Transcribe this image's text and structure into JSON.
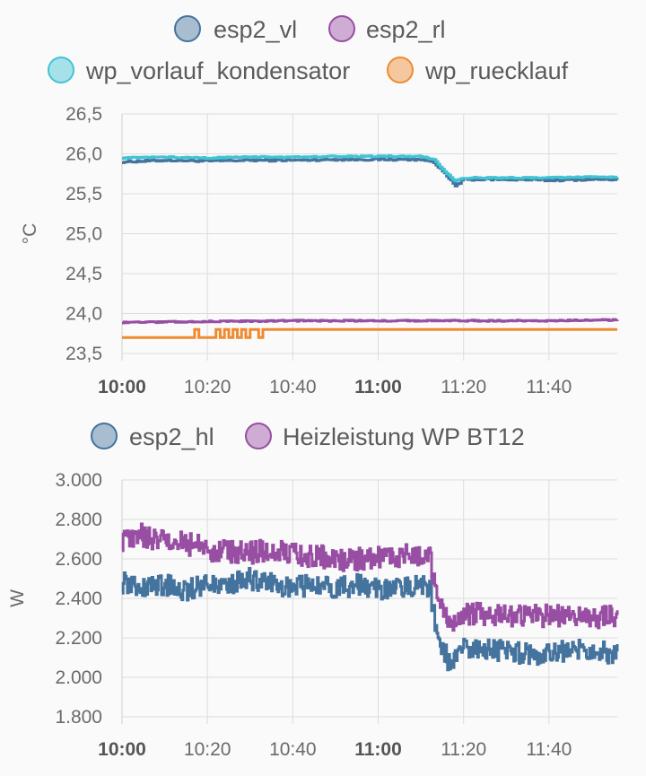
{
  "colors": {
    "esp2_vl": "#44739e",
    "esp2_rl": "#984ea3",
    "wp_vorlauf_kondensator": "#40c4d4",
    "wp_ruecklauf": "#ef8a2f",
    "esp2_hl": "#44739e",
    "heizleistung": "#984ea3"
  },
  "chart_data": [
    {
      "type": "line",
      "ylabel": "°C",
      "ylim": [
        23.5,
        26.5
      ],
      "y_ticks": [
        "26,5",
        "26,0",
        "25,5",
        "25,0",
        "24,5",
        "24,0",
        "23,5"
      ],
      "x_range": [
        "10:00",
        "11:56"
      ],
      "x_ticks": [
        {
          "label": "10:00",
          "bold": true
        },
        {
          "label": "10:20",
          "bold": false
        },
        {
          "label": "10:40",
          "bold": false
        },
        {
          "label": "11:00",
          "bold": true
        },
        {
          "label": "11:20",
          "bold": false
        },
        {
          "label": "11:40",
          "bold": false
        }
      ],
      "legend": {
        "placement": "top",
        "rows": [
          [
            "esp2_vl",
            "esp2_rl"
          ],
          [
            "wp_vorlauf_kondensator",
            "wp_ruecklauf"
          ]
        ]
      },
      "series": [
        {
          "name": "esp2_vl",
          "points": [
            [
              "10:00",
              25.9
            ],
            [
              "10:10",
              25.92
            ],
            [
              "10:20",
              25.91
            ],
            [
              "10:30",
              25.92
            ],
            [
              "10:40",
              25.92
            ],
            [
              "10:50",
              25.93
            ],
            [
              "11:00",
              25.93
            ],
            [
              "11:10",
              25.93
            ],
            [
              "11:13",
              25.9
            ],
            [
              "11:16",
              25.72
            ],
            [
              "11:18",
              25.6
            ],
            [
              "11:20",
              25.68
            ],
            [
              "11:30",
              25.68
            ],
            [
              "11:40",
              25.67
            ],
            [
              "11:50",
              25.68
            ],
            [
              "11:56",
              25.68
            ]
          ]
        },
        {
          "name": "wp_vorlauf_kondensator",
          "points": [
            [
              "10:00",
              25.95
            ],
            [
              "10:10",
              25.96
            ],
            [
              "10:20",
              25.95
            ],
            [
              "10:30",
              25.96
            ],
            [
              "10:40",
              25.96
            ],
            [
              "10:50",
              25.97
            ],
            [
              "11:00",
              25.97
            ],
            [
              "11:10",
              25.97
            ],
            [
              "11:13",
              25.93
            ],
            [
              "11:16",
              25.75
            ],
            [
              "11:18",
              25.66
            ],
            [
              "11:20",
              25.7
            ],
            [
              "11:30",
              25.7
            ],
            [
              "11:40",
              25.7
            ],
            [
              "11:50",
              25.71
            ],
            [
              "11:56",
              25.71
            ]
          ]
        },
        {
          "name": "esp2_rl",
          "points": [
            [
              "10:00",
              23.89
            ],
            [
              "10:20",
              23.9
            ],
            [
              "10:40",
              23.91
            ],
            [
              "11:00",
              23.91
            ],
            [
              "11:20",
              23.91
            ],
            [
              "11:40",
              23.91
            ],
            [
              "11:56",
              23.92
            ]
          ]
        },
        {
          "name": "wp_ruecklauf",
          "points": [
            [
              "10:00",
              23.7
            ],
            [
              "10:16",
              23.7
            ],
            [
              "10:17",
              23.8
            ],
            [
              "10:18",
              23.7
            ],
            [
              "10:22",
              23.8
            ],
            [
              "10:23",
              23.7
            ],
            [
              "10:24",
              23.8
            ],
            [
              "10:25",
              23.7
            ],
            [
              "10:26",
              23.8
            ],
            [
              "10:27",
              23.7
            ],
            [
              "10:28",
              23.8
            ],
            [
              "10:29",
              23.7
            ],
            [
              "10:30",
              23.8
            ],
            [
              "10:32",
              23.7
            ],
            [
              "10:33",
              23.8
            ],
            [
              "11:56",
              23.8
            ]
          ]
        }
      ]
    },
    {
      "type": "line",
      "ylabel": "W",
      "ylim": [
        1800,
        3000
      ],
      "y_ticks": [
        "3.000",
        "2.800",
        "2.600",
        "2.400",
        "2.200",
        "2.000",
        "1.800"
      ],
      "x_range": [
        "10:00",
        "11:56"
      ],
      "x_ticks": [
        {
          "label": "10:00",
          "bold": true
        },
        {
          "label": "10:20",
          "bold": false
        },
        {
          "label": "10:40",
          "bold": false
        },
        {
          "label": "11:00",
          "bold": true
        },
        {
          "label": "11:20",
          "bold": false
        },
        {
          "label": "11:40",
          "bold": false
        }
      ],
      "legend": {
        "placement": "top",
        "rows": [
          [
            "esp2_hl",
            "Heizleistung WP BT12"
          ]
        ]
      },
      "series": [
        {
          "name": "esp2_hl",
          "points": [
            [
              "10:00",
              2480
            ],
            [
              "10:05",
              2450
            ],
            [
              "10:10",
              2470
            ],
            [
              "10:15",
              2440
            ],
            [
              "10:20",
              2480
            ],
            [
              "10:25",
              2470
            ],
            [
              "10:30",
              2500
            ],
            [
              "10:35",
              2470
            ],
            [
              "10:40",
              2460
            ],
            [
              "10:45",
              2470
            ],
            [
              "10:50",
              2450
            ],
            [
              "10:55",
              2470
            ],
            [
              "11:00",
              2440
            ],
            [
              "11:05",
              2460
            ],
            [
              "11:10",
              2470
            ],
            [
              "11:12",
              2460
            ],
            [
              "11:14",
              2180
            ],
            [
              "11:17",
              2060
            ],
            [
              "11:20",
              2150
            ],
            [
              "11:25",
              2140
            ],
            [
              "11:30",
              2130
            ],
            [
              "11:35",
              2120
            ],
            [
              "11:40",
              2120
            ],
            [
              "11:45",
              2140
            ],
            [
              "11:50",
              2130
            ],
            [
              "11:56",
              2120
            ]
          ]
        },
        {
          "name": "Heizleistung WP BT12",
          "points": [
            [
              "10:00",
              2700
            ],
            [
              "10:05",
              2720
            ],
            [
              "10:10",
              2690
            ],
            [
              "10:15",
              2680
            ],
            [
              "10:20",
              2650
            ],
            [
              "10:25",
              2640
            ],
            [
              "10:30",
              2630
            ],
            [
              "10:35",
              2640
            ],
            [
              "10:40",
              2620
            ],
            [
              "10:45",
              2620
            ],
            [
              "10:50",
              2600
            ],
            [
              "10:55",
              2600
            ],
            [
              "11:00",
              2610
            ],
            [
              "11:05",
              2620
            ],
            [
              "11:10",
              2630
            ],
            [
              "11:12",
              2600
            ],
            [
              "11:14",
              2400
            ],
            [
              "11:17",
              2260
            ],
            [
              "11:20",
              2320
            ],
            [
              "11:25",
              2320
            ],
            [
              "11:30",
              2320
            ],
            [
              "11:35",
              2310
            ],
            [
              "11:40",
              2310
            ],
            [
              "11:45",
              2320
            ],
            [
              "11:50",
              2310
            ],
            [
              "11:56",
              2310
            ]
          ]
        }
      ]
    }
  ]
}
